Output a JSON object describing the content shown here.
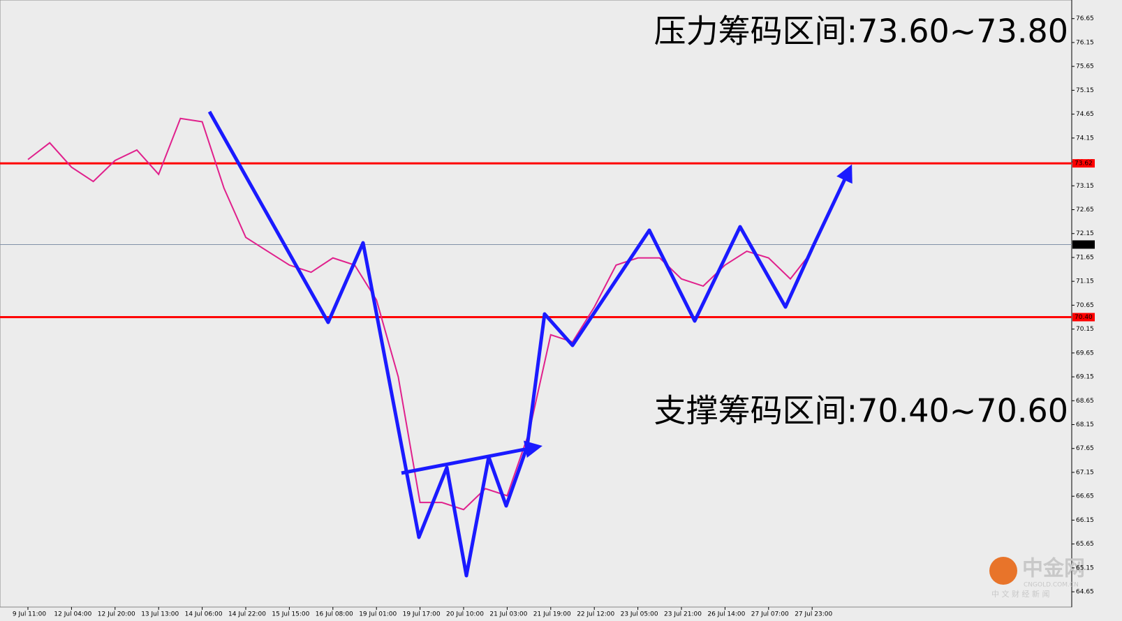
{
  "chart_data": {
    "type": "line",
    "categories": [
      "9 Jul 11:00",
      null,
      "12 Jul 04:00",
      null,
      "12 Jul 20:00",
      null,
      "13 Jul 13:00",
      null,
      "14 Jul 06:00",
      null,
      "14 Jul 22:00",
      null,
      "15 Jul 15:00",
      null,
      "16 Jul 08:00",
      null,
      "19 Jul 01:00",
      null,
      "19 Jul 17:00",
      null,
      "20 Jul 10:00",
      null,
      "21 Jul 03:00",
      null,
      "21 Jul 19:00",
      null,
      "22 Jul 12:00",
      null,
      "23 Jul 05:00",
      null,
      "23 Jul 21:00",
      null,
      "26 Jul 14:00",
      null,
      "27 Jul 07:00",
      null,
      "27 Jul 23:00"
    ],
    "values": [
      73.7,
      74.05,
      73.54,
      73.24,
      73.68,
      73.9,
      73.39,
      74.56,
      74.49,
      73.1,
      72.07,
      71.78,
      71.49,
      71.34,
      71.64,
      71.49,
      70.76,
      69.15,
      66.52,
      66.52,
      66.37,
      66.81,
      66.66,
      67.98,
      70.03,
      69.88,
      70.61,
      71.49,
      71.64,
      71.64,
      71.2,
      71.05,
      71.49,
      71.78,
      71.64,
      71.2,
      71.78
    ],
    "color": "#e0208c",
    "ylim": [
      64.33,
      77.04
    ],
    "yticks": [
      76.65,
      76.15,
      75.65,
      75.15,
      74.65,
      74.15,
      73.65,
      73.15,
      72.65,
      72.15,
      71.65,
      71.15,
      70.65,
      70.15,
      69.65,
      69.15,
      68.65,
      68.15,
      67.65,
      67.15,
      66.65,
      66.15,
      65.65,
      65.15,
      64.65
    ],
    "levels": [
      {
        "value": 73.62,
        "color": "#ff0000"
      },
      {
        "value": 71.92,
        "color": "#8090a8"
      },
      {
        "value": 70.4,
        "label": "70.40",
        "color": "#ff0000"
      }
    ],
    "annotations": [
      "压力筹码区间:73.60~73.80",
      "支撑筹码区间:70.40~70.60"
    ],
    "watermark": [
      "中金网",
      "CNGOLD.COM.CN",
      "中 文 财 经 新 闻"
    ]
  }
}
